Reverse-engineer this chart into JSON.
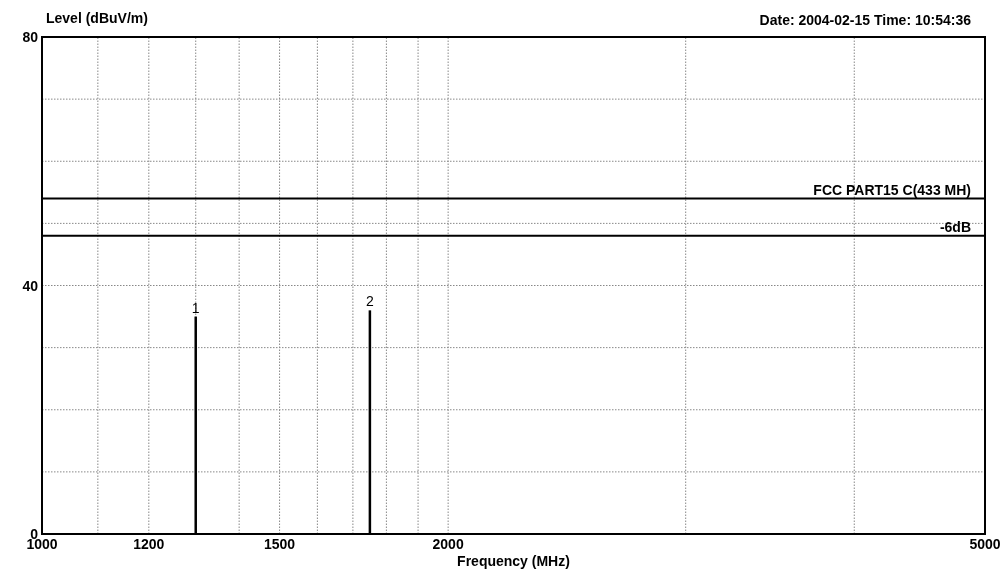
{
  "chart_data": {
    "type": "bar",
    "ylabel": "Level (dBuV/m)",
    "xlabel": "Frequency (MHz)",
    "subtitle": "Date: 2004-02-15  Time: 10:54:36",
    "x": [
      1300,
      1750
    ],
    "values": [
      35,
      36
    ],
    "color": "#000000",
    "annotations": [
      {
        "text": "1",
        "x": 1300,
        "y": 35
      },
      {
        "text": "2",
        "x": 1750,
        "y": 36
      }
    ],
    "log": "x",
    "xlim": [
      1000,
      5000
    ],
    "xticks": [
      1000,
      {
        "value": 1100,
        "label": null
      },
      1200,
      {
        "value": 1300,
        "label": null
      },
      {
        "value": 1400,
        "label": null
      },
      1500,
      {
        "value": 1600,
        "label": null
      },
      {
        "value": 1700,
        "label": null
      },
      {
        "value": 1800,
        "label": null
      },
      {
        "value": 1900,
        "label": null
      },
      2000,
      {
        "value": 3000,
        "label": null
      },
      {
        "value": 4000,
        "label": null
      },
      5000
    ],
    "ylim": [
      0,
      80
    ],
    "yticks": [
      0,
      {
        "value": 10,
        "label": null
      },
      {
        "value": 20,
        "label": null
      },
      {
        "value": 30,
        "label": null
      },
      40,
      {
        "value": 50,
        "label": null
      },
      {
        "value": 60,
        "label": null
      },
      {
        "value": 70,
        "label": null
      },
      80
    ],
    "grid": true,
    "ref_lines": [
      {
        "axis": "y",
        "value": 54,
        "label": "FCC PART15 C(433 MH)",
        "color": "#000000"
      },
      {
        "axis": "y",
        "value": 48,
        "label": "-6dB",
        "color": "#000000"
      }
    ]
  }
}
